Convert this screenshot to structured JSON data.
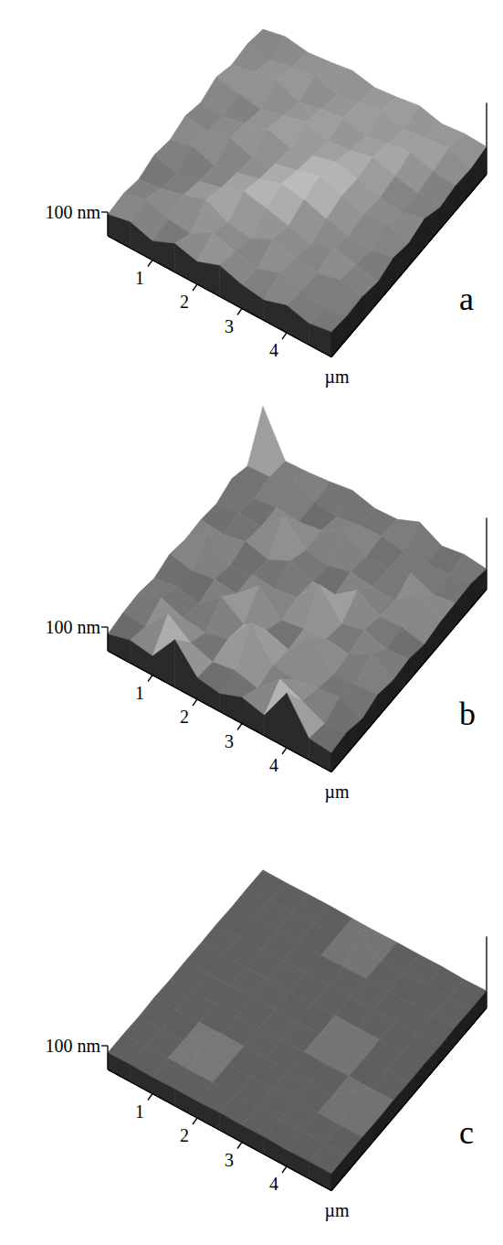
{
  "chart_data": [
    {
      "type": "surface",
      "title": "a",
      "x_label": "µm",
      "xlim": [
        0,
        5
      ],
      "ylim": [
        0,
        5
      ],
      "xticks": [
        1,
        2,
        3,
        4
      ],
      "zlim": [
        0,
        300
      ],
      "zticks": [
        {
          "value": 100,
          "label": "100 nm"
        }
      ],
      "tick_labels": "x",
      "x": [
        0,
        0.5,
        1,
        1.5,
        2,
        2.5,
        3,
        3.5,
        4,
        4.5,
        5
      ],
      "y": [
        0,
        0.5,
        1,
        1.5,
        2,
        2.5,
        3,
        3.5,
        4,
        4.5,
        5
      ],
      "heights": [
        [
          90,
          110,
          80,
          120,
          95,
          130,
          100,
          85,
          115,
          90,
          105
        ],
        [
          100,
          130,
          95,
          85,
          140,
          110,
          90,
          125,
          100,
          80,
          95
        ],
        [
          85,
          95,
          120,
          150,
          105,
          90,
          135,
          110,
          95,
          120,
          100
        ],
        [
          110,
          80,
          100,
          125,
          160,
          140,
          115,
          90,
          130,
          105,
          85
        ],
        [
          95,
          120,
          90,
          110,
          135,
          165,
          150,
          120,
          100,
          90,
          110
        ],
        [
          120,
          105,
          130,
          95,
          120,
          145,
          170,
          140,
          115,
          125,
          95
        ],
        [
          100,
          90,
          115,
          140,
          110,
          130,
          155,
          135,
          105,
          95,
          120
        ],
        [
          130,
          110,
          95,
          120,
          145,
          115,
          125,
          150,
          120,
          100,
          90
        ],
        [
          105,
          125,
          140,
          100,
          120,
          135,
          110,
          130,
          145,
          115,
          105
        ],
        [
          115,
          95,
          120,
          130,
          105,
          125,
          140,
          115,
          125,
          135,
          100
        ],
        [
          100,
          120,
          105,
          115,
          130,
          110,
          120,
          135,
          110,
          120,
          115
        ]
      ]
    },
    {
      "type": "surface",
      "title": "b",
      "x_label": "µm",
      "xlim": [
        0,
        5
      ],
      "ylim": [
        0,
        5
      ],
      "xticks": [
        1,
        2,
        3,
        4
      ],
      "zlim": [
        0,
        300
      ],
      "zticks": [
        {
          "value": 100,
          "label": "100 nm"
        }
      ],
      "tick_labels": "x",
      "x": [
        0,
        0.5,
        1,
        1.5,
        2,
        2.5,
        3,
        3.5,
        4,
        4.5,
        5
      ],
      "y": [
        0,
        0.5,
        1,
        1.5,
        2,
        2.5,
        3,
        3.5,
        4,
        4.5,
        5
      ],
      "heights": [
        [
          70,
          95,
          80,
          200,
          90,
          75,
          110,
          85,
          230,
          90,
          80
        ],
        [
          85,
          75,
          180,
          110,
          80,
          95,
          70,
          160,
          120,
          75,
          90
        ],
        [
          90,
          120,
          85,
          75,
          100,
          220,
          90,
          80,
          95,
          110,
          70
        ],
        [
          75,
          90,
          70,
          150,
          85,
          110,
          80,
          190,
          75,
          85,
          95
        ],
        [
          100,
          80,
          95,
          85,
          170,
          75,
          90,
          100,
          85,
          140,
          80
        ],
        [
          85,
          160,
          75,
          90,
          80,
          95,
          200,
          85,
          110,
          80,
          90
        ],
        [
          90,
          80,
          100,
          75,
          120,
          85,
          80,
          150,
          90,
          95,
          75
        ],
        [
          80,
          95,
          85,
          180,
          90,
          75,
          100,
          85,
          80,
          170,
          90
        ],
        [
          110,
          75,
          90,
          80,
          95,
          150,
          85,
          90,
          120,
          80,
          95
        ],
        [
          85,
          90,
          140,
          85,
          75,
          90,
          95,
          80,
          85,
          90,
          100
        ],
        [
          260,
          80,
          85,
          95,
          110,
          85,
          90,
          130,
          80,
          95,
          85
        ]
      ]
    },
    {
      "type": "surface",
      "title": "c",
      "x_label": "µm",
      "xlim": [
        0,
        5
      ],
      "ylim": [
        0,
        5
      ],
      "xticks": [
        1,
        2,
        3,
        4
      ],
      "zlim": [
        0,
        300
      ],
      "zticks": [
        {
          "value": 100,
          "label": "100 nm"
        }
      ],
      "tick_labels": "x",
      "x": [
        0,
        0.5,
        1,
        1.5,
        2,
        2.5,
        3,
        3.5,
        4,
        4.5,
        5
      ],
      "y": [
        0,
        0.5,
        1,
        1.5,
        2,
        2.5,
        3,
        3.5,
        4,
        4.5,
        5
      ],
      "heights": [
        [
          70,
          72,
          68,
          71,
          69,
          73,
          70,
          72,
          68,
          71,
          70
        ],
        [
          71,
          69,
          73,
          70,
          72,
          68,
          71,
          69,
          73,
          70,
          72
        ],
        [
          68,
          72,
          70,
          160,
          71,
          69,
          73,
          70,
          72,
          69,
          71
        ],
        [
          72,
          70,
          69,
          72,
          70,
          71,
          68,
          72,
          70,
          140,
          69
        ],
        [
          69,
          71,
          72,
          69,
          73,
          70,
          72,
          69,
          71,
          70,
          72
        ],
        [
          71,
          68,
          70,
          71,
          69,
          72,
          70,
          150,
          69,
          72,
          70
        ],
        [
          70,
          72,
          69,
          73,
          70,
          68,
          71,
          70,
          72,
          69,
          71
        ],
        [
          72,
          69,
          71,
          70,
          72,
          71,
          69,
          72,
          70,
          71,
          68
        ],
        [
          69,
          71,
          70,
          72,
          68,
          70,
          73,
          69,
          71,
          70,
          72
        ],
        [
          71,
          70,
          72,
          69,
          71,
          150,
          70,
          72,
          69,
          71,
          70
        ],
        [
          70,
          69,
          71,
          72,
          70,
          69,
          71,
          70,
          72,
          68,
          71
        ]
      ]
    }
  ]
}
